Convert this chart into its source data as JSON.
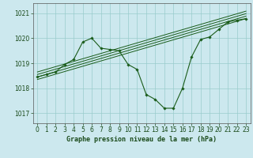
{
  "title": "Graphe pression niveau de la mer (hPa)",
  "bg_color": "#cce8ee",
  "grid_color": "#99cccc",
  "line_color": "#1a5c1a",
  "xlim": [
    -0.5,
    23.5
  ],
  "ylim": [
    1016.6,
    1021.4
  ],
  "yticks": [
    1017,
    1018,
    1019,
    1020,
    1021
  ],
  "xticks": [
    0,
    1,
    2,
    3,
    4,
    5,
    6,
    7,
    8,
    9,
    10,
    11,
    12,
    13,
    14,
    15,
    16,
    17,
    18,
    19,
    20,
    21,
    22,
    23
  ],
  "main_line": {
    "x": [
      0,
      1,
      2,
      3,
      4,
      5,
      6,
      7,
      8,
      9,
      10,
      11,
      12,
      13,
      14,
      15,
      16,
      17,
      18,
      19,
      20,
      21,
      22,
      23
    ],
    "y": [
      1018.45,
      1018.55,
      1018.65,
      1018.95,
      1019.15,
      1019.85,
      1020.0,
      1019.6,
      1019.55,
      1019.5,
      1018.95,
      1018.75,
      1017.75,
      1017.55,
      1017.2,
      1017.2,
      1018.0,
      1019.25,
      1019.95,
      1020.05,
      1020.35,
      1020.65,
      1020.72,
      1020.78
    ]
  },
  "trend_lines": [
    {
      "x": [
        0,
        23
      ],
      "y": [
        1018.35,
        1020.78
      ]
    },
    {
      "x": [
        0,
        23
      ],
      "y": [
        1018.45,
        1020.88
      ]
    },
    {
      "x": [
        0,
        23
      ],
      "y": [
        1018.55,
        1020.98
      ]
    },
    {
      "x": [
        0,
        23
      ],
      "y": [
        1018.65,
        1021.08
      ]
    }
  ],
  "xlabel_fontsize": 6.0,
  "tick_fontsize": 5.5
}
